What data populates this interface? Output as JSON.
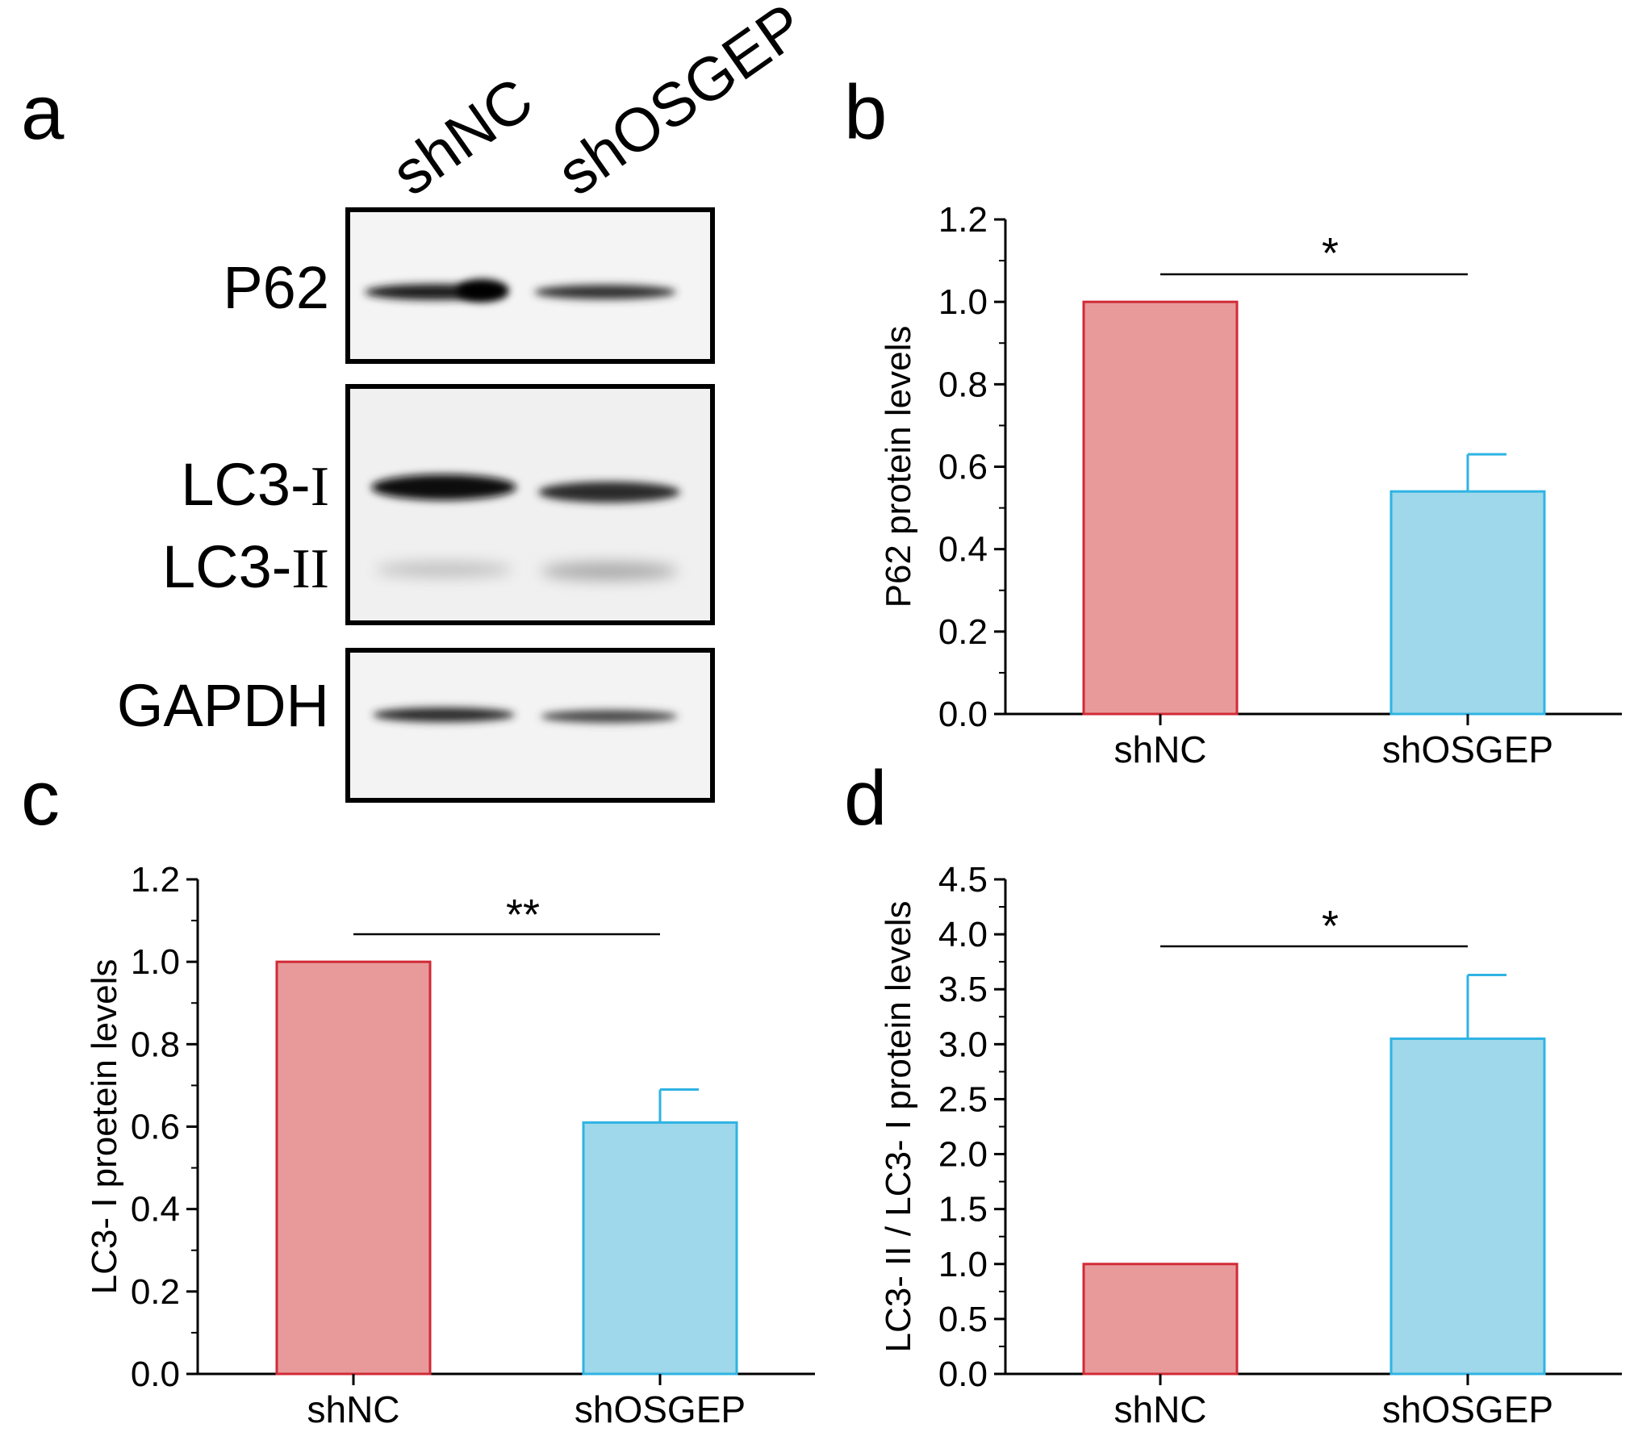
{
  "panels": {
    "a": "a",
    "b": "b",
    "c": "c",
    "d": "d"
  },
  "blot": {
    "lanes": [
      "shNC",
      "shOSGEP"
    ],
    "bands": {
      "p62": "P62",
      "lc3_prefix": "LC3-",
      "lc3_i_roman": "I",
      "lc3_ii_roman": "II",
      "gapdh": "GAPDH"
    }
  },
  "colors": {
    "shnc_fill": "#e89a9a",
    "shnc_stroke": "#d12a36",
    "shosgep_fill": "#9fd8ea",
    "shosgep_stroke": "#2fb3e3"
  },
  "chart_data": [
    {
      "panel": "b",
      "type": "bar",
      "categories": [
        "shNC",
        "shOSGEP"
      ],
      "values": [
        1.0,
        0.54
      ],
      "error": [
        0,
        0.09
      ],
      "ylabel": "P62 protein levels",
      "ylim": [
        0,
        1.2
      ],
      "yticks": [
        "0.0",
        "0.2",
        "0.4",
        "0.6",
        "0.8",
        "1.0",
        "1.2"
      ],
      "significance": "*"
    },
    {
      "panel": "c",
      "type": "bar",
      "categories": [
        "shNC",
        "shOSGEP"
      ],
      "values": [
        1.0,
        0.61
      ],
      "error": [
        0,
        0.08
      ],
      "ylabel": "LC3- I  proetein levels",
      "ylim": [
        0,
        1.2
      ],
      "yticks": [
        "0.0",
        "0.2",
        "0.4",
        "0.6",
        "0.8",
        "1.0",
        "1.2"
      ],
      "significance": "**"
    },
    {
      "panel": "d",
      "type": "bar",
      "categories": [
        "shNC",
        "shOSGEP"
      ],
      "values": [
        1.0,
        3.05
      ],
      "error": [
        0,
        0.58
      ],
      "ylabel": "LC3- II / LC3- I protein levels",
      "ylim": [
        0,
        4.5
      ],
      "yticks": [
        "0.0",
        "0.5",
        "1.0",
        "1.5",
        "2.0",
        "2.5",
        "3.0",
        "3.5",
        "4.0",
        "4.5"
      ],
      "significance": "*"
    }
  ]
}
